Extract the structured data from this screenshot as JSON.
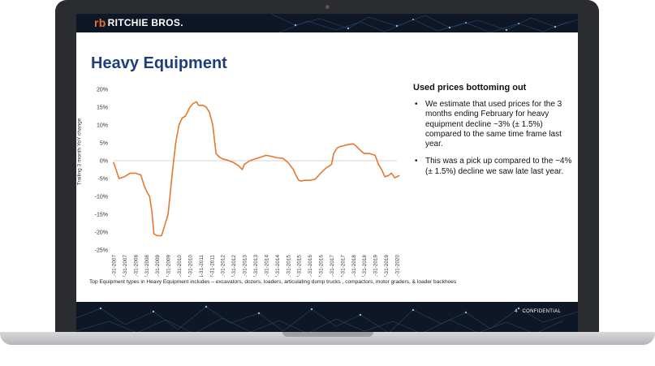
{
  "brand": {
    "name": "RITCHIE BROS.",
    "mark": "rb"
  },
  "slide": {
    "title": "Heavy Equipment",
    "note": "Top Equipment types in Heavy Equipment includes – excavators, dozers, loaders, articulating dump trucks , compactors,  motor graders, & loader backhoes",
    "page_number": "4",
    "confidential": "CONFIDENTIAL"
  },
  "panel": {
    "heading": "Used prices bottoming out",
    "bullet_char": "•",
    "bullets": [
      "We estimate that used prices for the 3 months ending February for heavy equipment decline ~3% (± 1.5%) compared to the same time frame last year.",
      "This was a pick up compared to the ~4% (± 1.5%) decline we saw late last year."
    ]
  },
  "colors": {
    "line": "#e8772e",
    "title": "#1e3f7e",
    "header_bg": "#0e1726",
    "logo_accent": "#e2752b"
  },
  "chart_data": {
    "type": "line",
    "ylabel": "Trailing 3 month YoY change",
    "xlabel": "",
    "ylim": [
      -25,
      20
    ],
    "yticks": [
      "20%",
      "15%",
      "10%",
      "5%",
      "0%",
      "-5%",
      "-10%",
      "-15%",
      "-20%",
      "-25%"
    ],
    "xticks": [
      "1-31-2007",
      "7-31-2007",
      "1-31-2008",
      "7-31-2008",
      "1-31-2009",
      "7-31-2009",
      "1-31-2010",
      "7-31-2010",
      "1-31-2011",
      "7-31-2011",
      "1-31-2012",
      "7-31-2012",
      "1-31-2013",
      "7-31-2013",
      "1-31-2014",
      "7-31-2014",
      "1-31-2015",
      "7-31-2015",
      "1-31-2016",
      "7-31-2016",
      "1-31-2017",
      "7-31-2017",
      "1-31-2018",
      "7-31-2018",
      "1-31-2019",
      "7-31-2019",
      "1-31-2020"
    ],
    "x": [
      2007.0,
      2007.25,
      2007.5,
      2007.75,
      2008.0,
      2008.25,
      2008.4,
      2008.55,
      2008.65,
      2008.75,
      2008.85,
      2009.0,
      2009.2,
      2009.35,
      2009.5,
      2009.7,
      2009.85,
      2010.0,
      2010.15,
      2010.3,
      2010.5,
      2010.65,
      2010.8,
      2010.9,
      2011.0,
      2011.1,
      2011.25,
      2011.4,
      2011.55,
      2011.7,
      2011.85,
      2012.0,
      2012.2,
      2012.5,
      2012.75,
      2012.9,
      2013.0,
      2013.25,
      2013.5,
      2013.75,
      2014.0,
      2014.25,
      2014.5,
      2014.75,
      2015.0,
      2015.25,
      2015.4,
      2015.5,
      2015.6,
      2015.75,
      2016.0,
      2016.25,
      2016.5,
      2016.75,
      2016.9,
      2017.0,
      2017.1,
      2017.25,
      2017.4,
      2017.5,
      2017.75,
      2018.0,
      2018.15,
      2018.3,
      2018.5,
      2018.75,
      2019.0,
      2019.15,
      2019.3,
      2019.45,
      2019.6,
      2019.75,
      2019.9,
      2020.0,
      2020.1
    ],
    "y": [
      -0.5,
      -5,
      -4.5,
      -3.5,
      -3.5,
      -4,
      -7,
      -9,
      -10,
      -14,
      -20.5,
      -21,
      -21,
      -18,
      -15,
      -3,
      5,
      10,
      12,
      12.5,
      15,
      16,
      16.5,
      15.5,
      15.5,
      15.5,
      15,
      13.5,
      10,
      2,
      1,
      0.5,
      0.2,
      -0.5,
      -1.5,
      -2.5,
      -1,
      0,
      0.5,
      1,
      1.5,
      1.2,
      0.8,
      0.7,
      -0.5,
      -2.5,
      -4.5,
      -5.5,
      -5.7,
      -5.5,
      -5.5,
      -5.2,
      -3.5,
      -2,
      -1.5,
      -1,
      2,
      3.5,
      4,
      4.1,
      4.5,
      4.7,
      4,
      3,
      2,
      2,
      1.5,
      -1,
      -2.5,
      -4.5,
      -4.2,
      -3.5,
      -4.8,
      -4.5,
      -4.2
    ]
  }
}
